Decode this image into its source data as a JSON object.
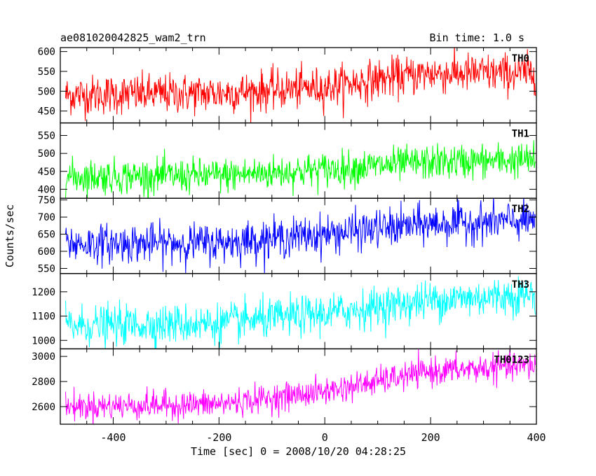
{
  "title": "ae081020042825_wam2_trn",
  "bin_time": "Bin time: 1.0 s",
  "chart_data": {
    "type": "line",
    "xlabel": "Time [sec] 0 = 2008/10/20 04:28:25",
    "ylabel": "Counts/sec",
    "xlim": [
      -500,
      400
    ],
    "x_ticks": [
      -400,
      -200,
      0,
      200,
      400
    ],
    "bin_time_s": 1.0,
    "panels": [
      {
        "name": "TH0",
        "color": "#ff0000",
        "ylim": [
          420,
          610
        ],
        "y_ticks": [
          450,
          500,
          550,
          600
        ],
        "trend": {
          "x": [
            -500,
            -200,
            0,
            100,
            200,
            400
          ],
          "y": [
            490,
            495,
            510,
            530,
            545,
            545
          ]
        },
        "noise_sd": 25
      },
      {
        "name": "TH1",
        "color": "#00ff00",
        "ylim": [
          375,
          585
        ],
        "y_ticks": [
          400,
          450,
          500,
          550
        ],
        "trend": {
          "x": [
            -500,
            -200,
            0,
            200,
            400
          ],
          "y": [
            435,
            438,
            455,
            475,
            482
          ]
        },
        "noise_sd": 24
      },
      {
        "name": "TH2",
        "color": "#0000ff",
        "ylim": [
          535,
          755
        ],
        "y_ticks": [
          550,
          600,
          650,
          700,
          750
        ],
        "trend": {
          "x": [
            -500,
            -200,
            0,
            200,
            400
          ],
          "y": [
            622,
            625,
            650,
            680,
            690
          ]
        },
        "noise_sd": 28
      },
      {
        "name": "TH3",
        "color": "#00ffff",
        "ylim": [
          965,
          1275
        ],
        "y_ticks": [
          1000,
          1100,
          1200
        ],
        "trend": {
          "x": [
            -500,
            -200,
            0,
            200,
            400
          ],
          "y": [
            1060,
            1070,
            1110,
            1165,
            1190
          ]
        },
        "noise_sd": 40
      },
      {
        "name": "TH0123",
        "color": "#ff00ff",
        "ylim": [
          2460,
          3060
        ],
        "y_ticks": [
          2600,
          2800,
          3000
        ],
        "trend": {
          "x": [
            -500,
            -200,
            0,
            100,
            200,
            400
          ],
          "y": [
            2600,
            2620,
            2720,
            2800,
            2880,
            2930
          ]
        },
        "noise_sd": 55
      }
    ]
  }
}
